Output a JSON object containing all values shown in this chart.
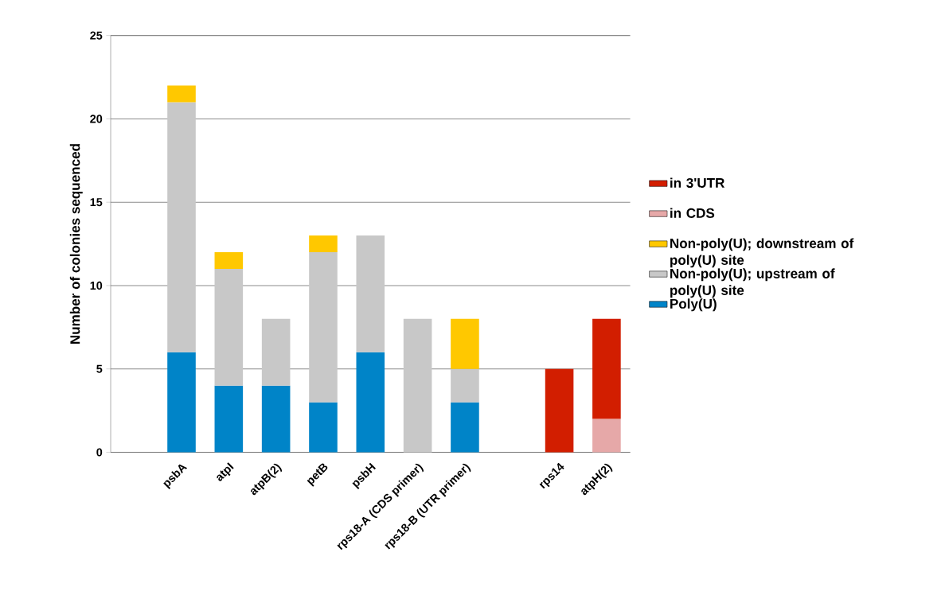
{
  "chart_data": {
    "type": "bar",
    "stacked": true,
    "ylabel": "Number of colonies sequenced",
    "categories": [
      null,
      "psbA",
      "atpI",
      "atpB(2)",
      "petB",
      "psbH",
      "rps18-A (CDS primer)",
      "rps18-B (UTR primer)",
      null,
      "rps14",
      "atpH(2)"
    ],
    "series": [
      {
        "name": "Poly(U)",
        "color": "#0084c8",
        "values": [
          null,
          6,
          4,
          4,
          3,
          6,
          null,
          3,
          null,
          null,
          null
        ]
      },
      {
        "name": "Non-poly(U); upstream of poly(U) site",
        "color": "#c8c8c8",
        "values": [
          null,
          15,
          7,
          4,
          9,
          7,
          8,
          2,
          null,
          null,
          null
        ]
      },
      {
        "name": "Non-poly(U); downstream of poly(U) site",
        "color": "#ffc800",
        "values": [
          null,
          1,
          1,
          null,
          1,
          null,
          null,
          3,
          null,
          null,
          null
        ]
      },
      {
        "name": "in CDS",
        "color": "#e6a8a8",
        "values": [
          null,
          null,
          null,
          null,
          null,
          null,
          null,
          null,
          null,
          null,
          2
        ]
      },
      {
        "name": "in 3'UTR",
        "color": "#d21e00",
        "values": [
          null,
          null,
          null,
          null,
          null,
          null,
          null,
          null,
          null,
          5,
          6
        ]
      }
    ],
    "ylim": [
      0,
      25
    ],
    "yticks": [
      0,
      5,
      10,
      15,
      20,
      25
    ],
    "grid": "y",
    "legend": "right"
  }
}
